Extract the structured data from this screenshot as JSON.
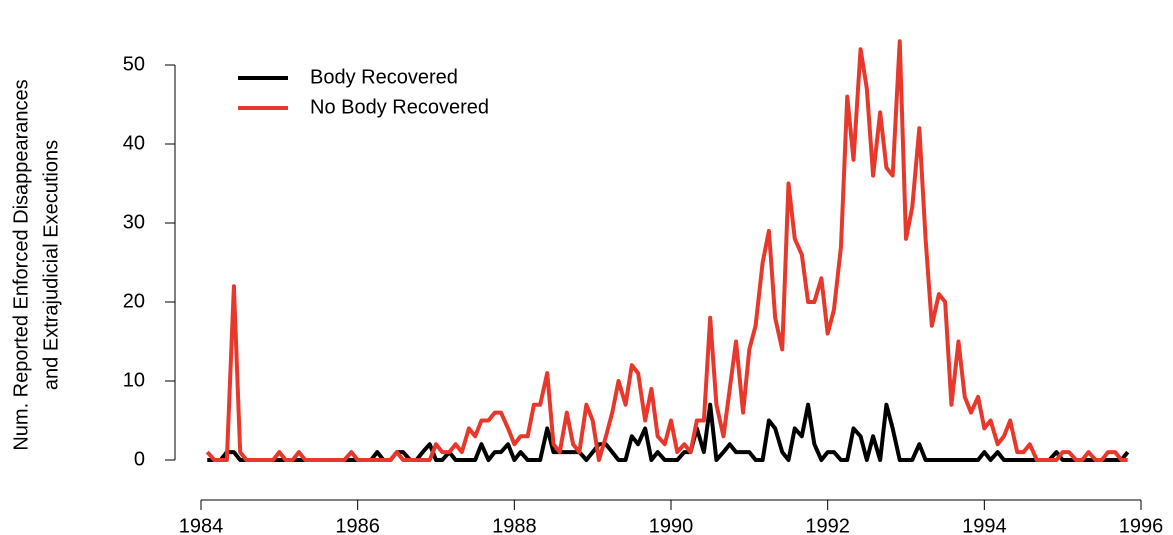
{
  "chart_data": {
    "type": "line",
    "y_label": [
      "Num. Reported Enforced Disappearances",
      "and Extrajudicial Executions"
    ],
    "x": [
      1984.08,
      1984.17,
      1984.25,
      1984.33,
      1984.42,
      1984.5,
      1984.58,
      1984.67,
      1984.75,
      1984.83,
      1984.92,
      1985.0,
      1985.08,
      1985.17,
      1985.25,
      1985.33,
      1985.42,
      1985.5,
      1985.58,
      1985.67,
      1985.75,
      1985.83,
      1985.92,
      1986.0,
      1986.08,
      1986.17,
      1986.25,
      1986.33,
      1986.42,
      1986.5,
      1986.58,
      1986.67,
      1986.75,
      1986.83,
      1986.92,
      1987.0,
      1987.08,
      1987.17,
      1987.25,
      1987.33,
      1987.42,
      1987.5,
      1987.58,
      1987.67,
      1987.75,
      1987.83,
      1987.92,
      1988.0,
      1988.08,
      1988.17,
      1988.25,
      1988.33,
      1988.42,
      1988.5,
      1988.58,
      1988.67,
      1988.75,
      1988.83,
      1988.92,
      1989.0,
      1989.08,
      1989.17,
      1989.25,
      1989.33,
      1989.42,
      1989.5,
      1989.58,
      1989.67,
      1989.75,
      1989.83,
      1989.92,
      1990.0,
      1990.08,
      1990.17,
      1990.25,
      1990.33,
      1990.42,
      1990.5,
      1990.58,
      1990.67,
      1990.75,
      1990.83,
      1990.92,
      1991.0,
      1991.08,
      1991.17,
      1991.25,
      1991.33,
      1991.42,
      1991.5,
      1991.58,
      1991.67,
      1991.75,
      1991.83,
      1991.92,
      1992.0,
      1992.08,
      1992.17,
      1992.25,
      1992.33,
      1992.42,
      1992.5,
      1992.58,
      1992.67,
      1992.75,
      1992.83,
      1992.92,
      1993.0,
      1993.08,
      1993.17,
      1993.25,
      1993.33,
      1993.42,
      1993.5,
      1993.58,
      1993.67,
      1993.75,
      1993.83,
      1993.92,
      1994.0,
      1994.08,
      1994.17,
      1994.25,
      1994.33,
      1994.42,
      1994.5,
      1994.58,
      1994.67,
      1994.75,
      1994.83,
      1994.92,
      1995.0,
      1995.08,
      1995.17,
      1995.25,
      1995.33,
      1995.42,
      1995.5,
      1995.58,
      1995.67,
      1995.75,
      1995.83
    ],
    "series": [
      {
        "name": "Body Recovered",
        "color": "#000000",
        "values": [
          0,
          0,
          0,
          1,
          1,
          0,
          0,
          0,
          0,
          0,
          0,
          0,
          0,
          0,
          0,
          0,
          0,
          0,
          0,
          0,
          0,
          0,
          0,
          0,
          0,
          0,
          1,
          0,
          0,
          1,
          1,
          0,
          0,
          1,
          2,
          0,
          0,
          1,
          0,
          0,
          0,
          0,
          2,
          0,
          1,
          1,
          2,
          0,
          1,
          0,
          0,
          0,
          4,
          1,
          1,
          1,
          1,
          1,
          0,
          1,
          2,
          2,
          1,
          0,
          0,
          3,
          2,
          4,
          0,
          1,
          0,
          0,
          0,
          1,
          1,
          4,
          1,
          7,
          0,
          1,
          2,
          1,
          1,
          1,
          0,
          0,
          5,
          4,
          1,
          0,
          4,
          3,
          7,
          2,
          0,
          1,
          1,
          0,
          0,
          4,
          3,
          0,
          3,
          0,
          7,
          4,
          0,
          0,
          0,
          2,
          0,
          0,
          0,
          0,
          0,
          0,
          0,
          0,
          0,
          1,
          0,
          1,
          0,
          0,
          0,
          0,
          0,
          0,
          0,
          0,
          1,
          0,
          0,
          0,
          0,
          0,
          0,
          0,
          0,
          0,
          0,
          1
        ]
      },
      {
        "name": "No Body Recovered",
        "color": "#e8372b",
        "values": [
          1,
          0,
          0,
          0,
          22,
          1,
          0,
          0,
          0,
          0,
          0,
          1,
          0,
          0,
          1,
          0,
          0,
          0,
          0,
          0,
          0,
          0,
          1,
          0,
          0,
          0,
          0,
          0,
          0,
          1,
          0,
          0,
          0,
          0,
          0,
          2,
          1,
          1,
          2,
          1,
          4,
          3,
          5,
          5,
          6,
          6,
          4,
          2,
          3,
          3,
          7,
          7,
          11,
          2,
          1,
          6,
          2,
          1,
          7,
          5,
          0,
          3,
          6,
          10,
          7,
          12,
          11,
          5,
          9,
          3,
          2,
          5,
          1,
          2,
          1,
          5,
          5,
          18,
          7,
          3,
          9,
          15,
          6,
          14,
          17,
          25,
          29,
          18,
          14,
          35,
          28,
          26,
          20,
          20,
          23,
          16,
          19,
          27,
          46,
          38,
          52,
          47,
          36,
          44,
          37,
          36,
          53,
          28,
          32,
          42,
          28,
          17,
          21,
          20,
          7,
          15,
          8,
          6,
          8,
          4,
          5,
          2,
          3,
          5,
          1,
          1,
          2,
          0,
          0,
          0,
          0,
          1,
          1,
          0,
          0,
          1,
          0,
          0,
          1,
          1,
          0,
          0
        ]
      }
    ],
    "xlim": [
      1984,
      1996
    ],
    "xticks": [
      1984,
      1986,
      1988,
      1990,
      1992,
      1994,
      1996
    ],
    "ylim": [
      0,
      50
    ],
    "yticks": [
      0,
      10,
      20,
      30,
      40,
      50
    ],
    "legend": "top-left"
  }
}
